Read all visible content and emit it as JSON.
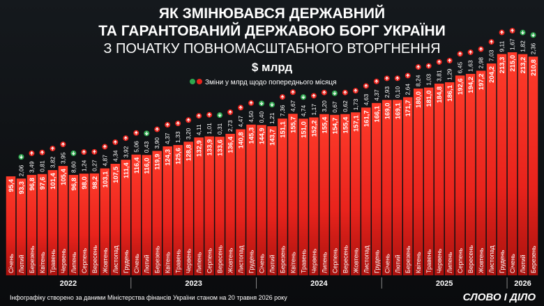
{
  "chart_data": {
    "type": "bar",
    "title": [
      "ЯК ЗМІНЮВАВСЯ ДЕРЖАВНИЙ",
      "ТА ГАРАНТОВАНИЙ ДЕРЖАВОЮ БОРГ УКРАЇНИ",
      "З ПОЧАТКУ ПОВНОМАСШТАБНОГО ВТОРГНЕННЯ"
    ],
    "unit": "$ млрд",
    "legend": "Зміни у млрд щодо попереднього місяця",
    "groups": [
      {
        "label": "2022",
        "categories": [
          "Січень",
          "Лютий",
          "Березень",
          "Квітень",
          "Травень",
          "Червень",
          "Липень",
          "Серпень",
          "Вересень",
          "Жовтень",
          "Листопад",
          "Грудень"
        ]
      },
      {
        "label": "2023",
        "categories": [
          "Січень",
          "Лютий",
          "Березень",
          "Квітень",
          "Травень",
          "Червень",
          "Липень",
          "Серпень",
          "Вересень",
          "Жовтень",
          "Листопад",
          "Грудень"
        ]
      },
      {
        "label": "2024",
        "categories": [
          "Січень",
          "Лютий",
          "Березень",
          "Квітень",
          "Травень",
          "Червень",
          "Липень",
          "Серпень",
          "Вересень",
          "Жовтень",
          "Листопад",
          "Грудень"
        ]
      },
      {
        "label": "2025",
        "categories": [
          "Січень",
          "Лютий",
          "Березень",
          "Квітень",
          "Травень",
          "Червень",
          "Липень",
          "Серпень",
          "Вересень",
          "Жовтень",
          "Листопад",
          "Грудень"
        ]
      },
      {
        "label": "2026",
        "categories": [
          "Січень",
          "Лютий",
          "Березень"
        ]
      }
    ],
    "values": [
      95.4,
      93.3,
      96.8,
      97.6,
      101.4,
      105.4,
      96.8,
      98.0,
      98.2,
      103.1,
      107.5,
      111.4,
      116.4,
      116.0,
      119.9,
      124.3,
      125.6,
      128.8,
      132.9,
      133.9,
      133.6,
      136.4,
      140.8,
      145.3,
      144.9,
      143.7,
      151.1,
      155.7,
      151.0,
      152.2,
      155.4,
      154.7,
      155.4,
      157.1,
      161.7,
      166.1,
      169.0,
      169.1,
      171.7,
      180.0,
      181.0,
      184.8,
      186.1,
      192.6,
      194.2,
      197.2,
      204.2,
      213.3,
      215.0,
      213.2,
      210.8
    ],
    "value_labels": [
      "95,4",
      "93,3",
      "96,8",
      "97,6",
      "101,4",
      "105,4",
      "96,8",
      "98,0",
      "98,2",
      "103,1",
      "107,5",
      "111,4",
      "116,4",
      "116,0",
      "119,9",
      "124,3",
      "125,6",
      "128,8",
      "132,9",
      "133,9",
      "133,6",
      "136,4",
      "140,8",
      "145,3",
      "144,9",
      "143,7",
      "151,1",
      "155,7",
      "151,0",
      "152,2",
      "155,4",
      "154,7",
      "155,4",
      "157,1",
      "161,7",
      "166,1",
      "169,0",
      "169,1",
      "171,7",
      "180,0",
      "181,0",
      "184,8",
      "186,1",
      "192,6",
      "194,2",
      "197,2",
      "204,2",
      "213,3",
      "215,0",
      "213,2",
      "210,8"
    ],
    "changes": [
      null,
      -2.06,
      3.49,
      0.81,
      3.82,
      3.95,
      -8.6,
      1.24,
      0.27,
      4.87,
      4.34,
      3.92,
      5.06,
      -0.43,
      3.9,
      4.37,
      1.33,
      3.2,
      4.11,
      1.01,
      -0.31,
      2.73,
      4.47,
      4.5,
      -0.4,
      -1.21,
      7.36,
      4.67,
      -4.74,
      1.17,
      3.2,
      -0.67,
      0.62,
      1.73,
      4.63,
      4.37,
      2.93,
      0.1,
      2.64,
      8.24,
      1.03,
      3.81,
      1.29,
      6.45,
      1.63,
      2.98,
      7.03,
      9.11,
      1.67,
      -1.82,
      -2.36
    ],
    "change_labels": [
      null,
      "2,06",
      "3,49",
      "0,81",
      "3,82",
      "3,95",
      "8,60",
      "1,24",
      "0,27",
      "4,87",
      "4,34",
      "3,92",
      "5,06",
      "0,43",
      "3,90",
      "4,37",
      "1,33",
      "3,20",
      "4,11",
      "1,01",
      "0,31",
      "2,73",
      "4,47",
      "4,50",
      "0,40",
      "1,21",
      "7,36",
      "4,67",
      "4,74",
      "1,17",
      "3,20",
      "0,67",
      "0,62",
      "1,73",
      "4,63",
      "4,37",
      "2,93",
      "0,10",
      "2,64",
      "8,24",
      "1,03",
      "3,81",
      "1,29",
      "6,45",
      "1,63",
      "2,98",
      "7,03",
      "9,11",
      "1,67",
      "1,82",
      "2,36"
    ],
    "color": "#e8231c",
    "up_color": "#e8231c",
    "down_color": "#2fa84f",
    "source": "Інфографіку створено за даними Міністерства фінансів України станом на 20 травня 2026 року",
    "logo": "СЛОВО І ДІЛО"
  }
}
